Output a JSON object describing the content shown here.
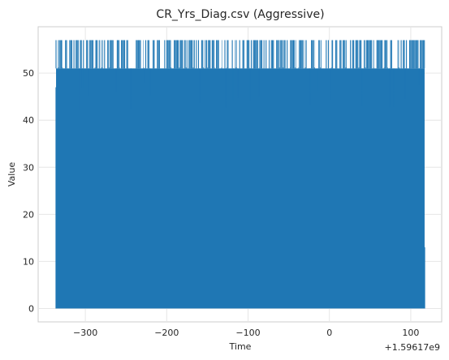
{
  "chart_data": {
    "type": "line",
    "title": "CR_Yrs_Diag.csv (Aggressive)",
    "xlabel": "Time",
    "ylabel": "Value",
    "x_offset_label": "+1.59617e9",
    "xlim": [
      -358,
      138
    ],
    "ylim": [
      -2.85,
      59.85
    ],
    "x_ticks": [
      -300,
      -200,
      -100,
      0,
      100
    ],
    "y_ticks": [
      0,
      10,
      20,
      30,
      40,
      50
    ],
    "grid": true,
    "series": [
      {
        "color": "#1f77b4",
        "x_range": [
          -336,
          117
        ],
        "y_min": 0,
        "y_typical_max": 51,
        "y_peak": 57,
        "style": "dense oscillating"
      }
    ]
  }
}
